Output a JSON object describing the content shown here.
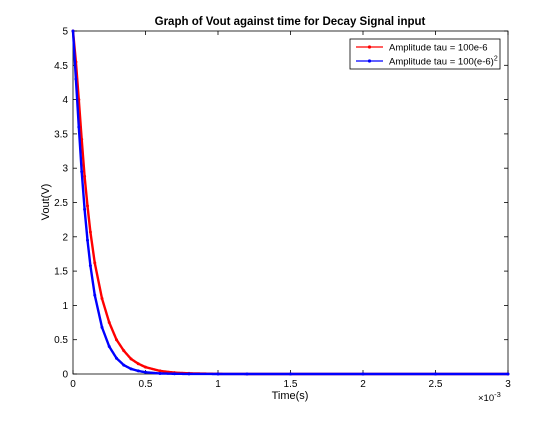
{
  "chart_data": {
    "type": "line",
    "title": "Graph of Vout against time for Decay Signal input",
    "xlabel": "Time(s)",
    "ylabel": "Vout(V)",
    "x_exponent_label": "×10",
    "x_exponent_power": "-3",
    "xlim": [
      0,
      0.003
    ],
    "ylim": [
      0,
      5
    ],
    "x_ticks": [
      0,
      0.0005,
      0.001,
      0.0015,
      0.002,
      0.0025,
      0.003
    ],
    "x_tick_labels": [
      "0",
      "0.5",
      "1",
      "1.5",
      "2",
      "2.5",
      "3"
    ],
    "y_ticks": [
      0,
      0.5,
      1,
      1.5,
      2,
      2.5,
      3,
      3.5,
      4,
      4.5,
      5
    ],
    "y_tick_labels": [
      "0",
      "0.5",
      "1",
      "1.5",
      "2",
      "2.5",
      "3",
      "3.5",
      "4",
      "4.5",
      "5"
    ],
    "grid": false,
    "legend_position": "top-right",
    "series": [
      {
        "name": "Amplitude tau = 100e-6",
        "color": "#ff0000",
        "marker": "dot",
        "x": [
          0,
          2e-05,
          4e-05,
          6e-05,
          8e-05,
          0.0001,
          0.00012,
          0.00015,
          0.0002,
          0.00025,
          0.0003,
          0.00035,
          0.0004,
          0.00045,
          0.0005,
          0.0006,
          0.0007,
          0.0008,
          0.001,
          0.0012,
          0.0015,
          0.002,
          0.0025,
          0.003
        ],
        "y": [
          5,
          4.55,
          4.0,
          3.42,
          2.88,
          2.45,
          2.07,
          1.62,
          1.1,
          0.75,
          0.5,
          0.34,
          0.22,
          0.15,
          0.1,
          0.045,
          0.02,
          0.01,
          0.002,
          0,
          0,
          0,
          0,
          0
        ]
      },
      {
        "name": "Amplitude tau = 100(e-6)",
        "name_superscript": "2",
        "color": "#0000ff",
        "marker": "dot",
        "x": [
          0,
          2e-05,
          4e-05,
          6e-05,
          8e-05,
          0.0001,
          0.00012,
          0.00015,
          0.0002,
          0.00025,
          0.0003,
          0.00035,
          0.0004,
          0.00045,
          0.0005,
          0.0006,
          0.0007,
          0.0008,
          0.001,
          0.0012,
          0.0015,
          0.002,
          0.0025,
          0.003
        ],
        "y": [
          5,
          4.3,
          3.6,
          2.95,
          2.4,
          1.95,
          1.58,
          1.15,
          0.68,
          0.4,
          0.23,
          0.13,
          0.075,
          0.045,
          0.025,
          0.008,
          0.003,
          0.001,
          0,
          0,
          0,
          0,
          0,
          0
        ]
      }
    ]
  }
}
